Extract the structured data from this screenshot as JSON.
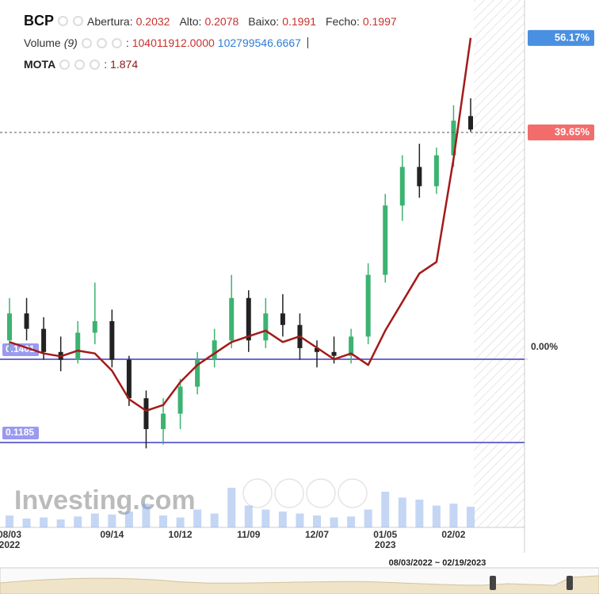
{
  "header": {
    "ohlc": [
      {
        "label": "Abertura:",
        "value": "0.2032"
      },
      {
        "label": "Alto:",
        "value": "0.2078"
      },
      {
        "label": "Baixo:",
        "value": "0.1991"
      },
      {
        "label": "Fecho:",
        "value": "0.1997"
      }
    ],
    "separator": ":",
    "volume": {
      "label": "Volume",
      "period": "(9)",
      "values": [
        "104011912.0000",
        "102799546.6667"
      ]
    },
    "compare_value": "1.874"
  },
  "chart_data": {
    "type": "candlestick",
    "categories": [
      "08/03",
      null,
      null,
      null,
      null,
      null,
      "09/14",
      null,
      null,
      null,
      "10/12",
      null,
      null,
      null,
      "11/09",
      null,
      null,
      null,
      "12/07",
      null,
      null,
      null,
      "01/05",
      null,
      null,
      null,
      "02/02",
      null
    ],
    "year_labels": [
      "2022",
      null,
      null,
      null,
      null,
      null,
      null,
      null,
      null,
      null,
      null,
      null,
      null,
      null,
      null,
      null,
      null,
      null,
      null,
      null,
      null,
      null,
      "2023",
      null,
      null,
      null,
      null,
      null
    ],
    "ylim": [
      0.0965,
      0.2333
    ],
    "y2lim": [
      -29.4,
      62.8
    ],
    "y2ticks": [
      {
        "value": 0,
        "label": "0.00%"
      }
    ],
    "price_lines": [
      0.1401,
      0.1185
    ],
    "price_line_color": "#6b6bd0",
    "series": [
      {
        "name": "BCP",
        "type": "candlestick",
        "up_color": "#3cb371",
        "down_color": "#222222",
        "open": [
          0.145,
          0.152,
          0.148,
          0.142,
          0.14,
          0.147,
          0.15,
          0.14,
          0.13,
          0.122,
          0.126,
          0.133,
          0.14,
          0.145,
          0.156,
          0.145,
          0.152,
          0.149,
          0.143,
          0.142,
          0.141,
          0.146,
          0.162,
          0.18,
          0.19,
          0.185,
          0.193,
          0.2032
        ],
        "high": [
          0.156,
          0.156,
          0.151,
          0.146,
          0.15,
          0.16,
          0.153,
          0.141,
          0.132,
          0.13,
          0.135,
          0.142,
          0.148,
          0.162,
          0.158,
          0.156,
          0.157,
          0.152,
          0.145,
          0.146,
          0.148,
          0.165,
          0.183,
          0.193,
          0.196,
          0.195,
          0.206,
          0.2078
        ],
        "low": [
          0.142,
          0.145,
          0.14,
          0.137,
          0.139,
          0.144,
          0.138,
          0.128,
          0.117,
          0.118,
          0.122,
          0.131,
          0.138,
          0.143,
          0.142,
          0.143,
          0.146,
          0.14,
          0.138,
          0.139,
          0.139,
          0.144,
          0.16,
          0.176,
          0.182,
          0.183,
          0.19,
          0.1991
        ],
        "close": [
          0.152,
          0.148,
          0.142,
          0.14,
          0.147,
          0.15,
          0.14,
          0.13,
          0.122,
          0.126,
          0.133,
          0.14,
          0.145,
          0.156,
          0.145,
          0.152,
          0.149,
          0.143,
          0.142,
          0.141,
          0.146,
          0.162,
          0.18,
          0.19,
          0.185,
          0.193,
          0.202,
          0.1997
        ],
        "last_change": 39.65,
        "last_change_label": "39.65%",
        "label_color": "#f26c6c"
      },
      {
        "name": "MOTA",
        "type": "line",
        "axis": "y2",
        "color": "#a31a1a",
        "label_color": "#4a90e2",
        "values": [
          3,
          2,
          1,
          0.5,
          1.5,
          1,
          -2,
          -7,
          -9,
          -8,
          -4,
          -1,
          1,
          3,
          4,
          5,
          3,
          4,
          2,
          0,
          1,
          -1,
          5,
          10,
          15,
          17,
          35,
          56.17
        ],
        "value_labels": [
          null,
          null,
          null,
          null,
          null,
          null,
          null,
          null,
          null,
          null,
          null,
          null,
          null,
          null,
          null,
          null,
          null,
          null,
          null,
          null,
          null,
          null,
          null,
          null,
          null,
          null,
          null,
          "56.17%"
        ]
      }
    ],
    "volume": {
      "color": "#7da3e6",
      "ylim": [
        0,
        280000000
      ],
      "values": [
        60000000,
        45000000,
        50000000,
        40000000,
        55000000,
        70000000,
        65000000,
        80000000,
        120000000,
        60000000,
        50000000,
        90000000,
        70000000,
        200000000,
        110000000,
        90000000,
        80000000,
        70000000,
        60000000,
        50000000,
        55000000,
        90000000,
        180000000,
        150000000,
        140000000,
        110000000,
        120000000,
        104011912
      ]
    }
  },
  "watermark": "Investing.com",
  "navigator": {
    "range": "08/03/2022 ~ 02/19/2023"
  }
}
